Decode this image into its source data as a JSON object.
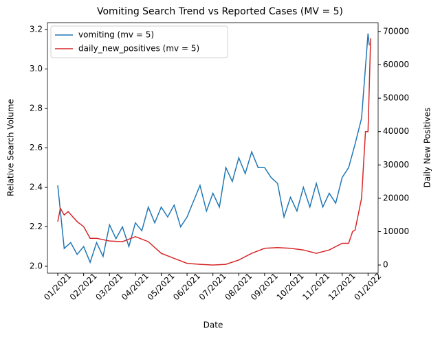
{
  "chart_data": {
    "type": "line",
    "title": "Vomiting Search Trend vs Reported Cases (MV = 5)",
    "x_label": "Date",
    "y_label": "Relative Search Volume",
    "y2_label": "Daily New Positives",
    "xlim": [
      -0.4,
      12.39
    ],
    "xticks": [
      {
        "value": 0,
        "label": "01/2021"
      },
      {
        "value": 1,
        "label": "02/2021"
      },
      {
        "value": 2,
        "label": "03/2021"
      },
      {
        "value": 3,
        "label": "04/2021"
      },
      {
        "value": 4,
        "label": "05/2021"
      },
      {
        "value": 5,
        "label": "06/2021"
      },
      {
        "value": 6,
        "label": "07/2021"
      },
      {
        "value": 7,
        "label": "08/2021"
      },
      {
        "value": 8,
        "label": "09/2021"
      },
      {
        "value": 9,
        "label": "10/2021"
      },
      {
        "value": 10,
        "label": "11/2021"
      },
      {
        "value": 11,
        "label": "12/2021"
      },
      {
        "value": 12,
        "label": "01/2022"
      }
    ],
    "ylim": [
      1.965,
      3.235
    ],
    "yticks": [
      {
        "value": 2.0,
        "label": "2.0"
      },
      {
        "value": 2.2,
        "label": "2.2"
      },
      {
        "value": 2.4,
        "label": "2.4"
      },
      {
        "value": 2.6,
        "label": "2.6"
      },
      {
        "value": 2.8,
        "label": "2.8"
      },
      {
        "value": 3.0,
        "label": "3.0"
      },
      {
        "value": 3.2,
        "label": "3.2"
      }
    ],
    "y2lim": [
      -2450,
      72650
    ],
    "y2ticks": [
      0,
      10000,
      20000,
      30000,
      40000,
      50000,
      60000,
      70000
    ],
    "legend": "upper left",
    "series": [
      {
        "name": "vomiting (mv = 5)",
        "color": "#1f77b4",
        "x": [
          0,
          0.25,
          0.5,
          0.75,
          1,
          1.25,
          1.5,
          1.75,
          2,
          2.25,
          2.5,
          2.75,
          3,
          3.25,
          3.5,
          3.75,
          4,
          4.25,
          4.5,
          4.75,
          5,
          5.25,
          5.5,
          5.75,
          6,
          6.25,
          6.5,
          6.75,
          7,
          7.25,
          7.5,
          7.75,
          8,
          8.25,
          8.5,
          8.75,
          9,
          9.25,
          9.5,
          9.75,
          10,
          10.25,
          10.5,
          10.75,
          11,
          11.25,
          11.5,
          11.75,
          12,
          12.05
        ],
        "values": [
          2.41,
          2.09,
          2.12,
          2.06,
          2.1,
          2.02,
          2.12,
          2.05,
          2.21,
          2.14,
          2.2,
          2.1,
          2.22,
          2.18,
          2.3,
          2.22,
          2.3,
          2.25,
          2.31,
          2.2,
          2.25,
          2.33,
          2.41,
          2.28,
          2.37,
          2.3,
          2.5,
          2.43,
          2.55,
          2.47,
          2.58,
          2.5,
          2.5,
          2.45,
          2.42,
          2.25,
          2.35,
          2.28,
          2.4,
          2.3,
          2.42,
          2.3,
          2.37,
          2.32,
          2.45,
          2.5,
          2.62,
          2.75,
          3.18,
          3.12
        ]
      },
      {
        "name": "daily_new_positives (mv = 5)",
        "color": "#d62728",
        "axis": "y2",
        "x": [
          0,
          0.1,
          0.25,
          0.4,
          0.75,
          1,
          1.25,
          1.5,
          2,
          2.5,
          3,
          3.5,
          4,
          4.5,
          5,
          5.5,
          6,
          6.5,
          7,
          7.5,
          8,
          8.5,
          9,
          9.5,
          10,
          10.5,
          11,
          11.25,
          11.4,
          11.5,
          11.75,
          11.9,
          12,
          12.1
        ],
        "values": [
          13000,
          17000,
          15000,
          16000,
          13000,
          11500,
          8000,
          8000,
          7200,
          7000,
          8500,
          7000,
          3500,
          2000,
          500,
          200,
          0,
          200,
          1500,
          3500,
          5000,
          5200,
          5000,
          4500,
          3500,
          4500,
          6500,
          6500,
          10000,
          10500,
          20000,
          40000,
          40000,
          68000
        ]
      }
    ]
  }
}
